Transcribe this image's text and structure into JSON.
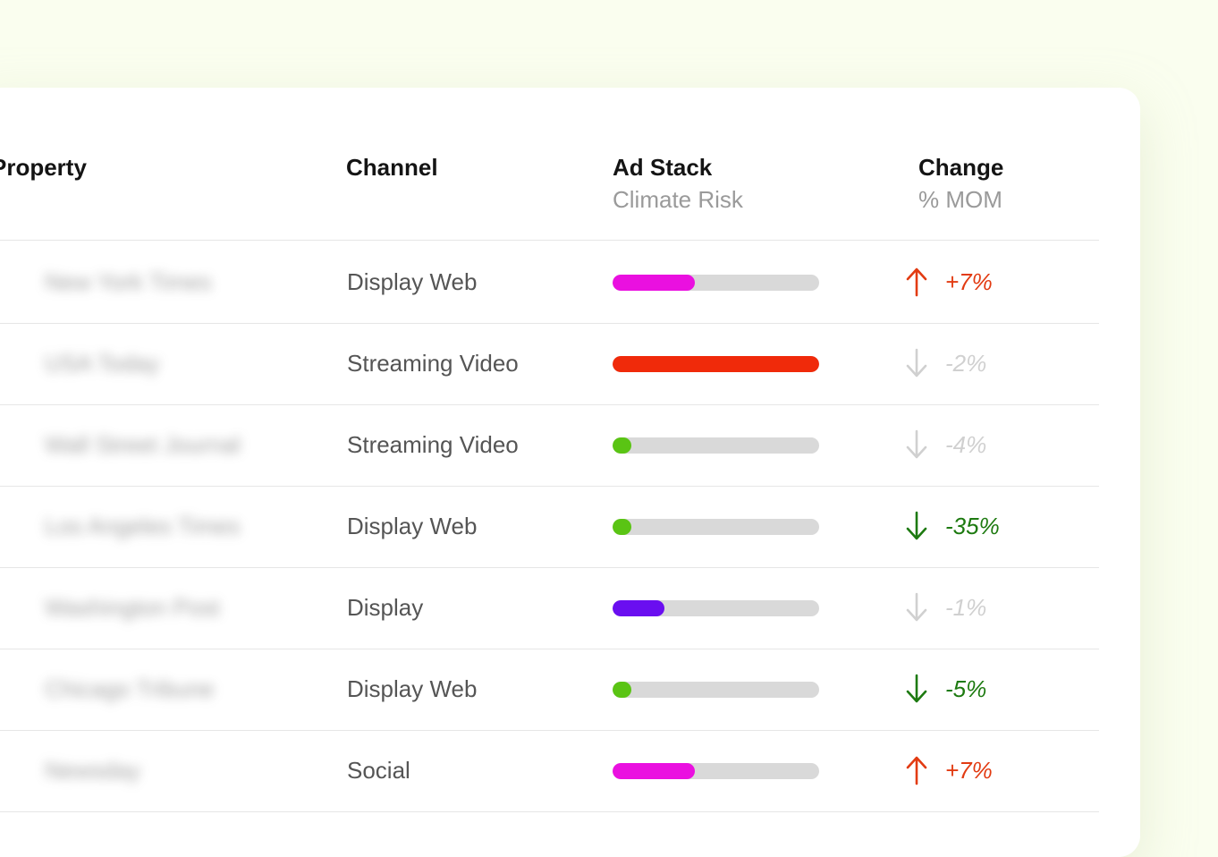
{
  "table": {
    "columns": {
      "property": {
        "title": "Property"
      },
      "channel": {
        "title": "Channel"
      },
      "adstack": {
        "title": "Ad Stack",
        "subtitle": "Climate Risk"
      },
      "change": {
        "title": "Change",
        "subtitle": "% MOM"
      }
    },
    "rows": [
      {
        "property": "New York Times",
        "channel": "Display Web",
        "risk": 0.4,
        "risk_color": "#ea10e0",
        "direction": "up",
        "change": "+7%",
        "change_color": "#e23b12"
      },
      {
        "property": "USA Today",
        "channel": "Streaming Video",
        "risk": 1.0,
        "risk_color": "#f02a0a",
        "direction": "down",
        "change": "-2%",
        "change_color": "#d0d0d0"
      },
      {
        "property": "Wall Street Journal",
        "channel": "Streaming Video",
        "risk": 0.09,
        "risk_color": "#5ac414",
        "direction": "down",
        "change": "-4%",
        "change_color": "#d0d0d0"
      },
      {
        "property": "Los Angeles Times",
        "channel": "Display Web",
        "risk": 0.09,
        "risk_color": "#5ac414",
        "direction": "down",
        "change": "-35%",
        "change_color": "#1d7a10"
      },
      {
        "property": "Washington Post",
        "channel": "Display",
        "risk": 0.25,
        "risk_color": "#6a0ef0",
        "direction": "down",
        "change": "-1%",
        "change_color": "#d0d0d0"
      },
      {
        "property": "Chicago Tribune",
        "channel": "Display Web",
        "risk": 0.09,
        "risk_color": "#5ac414",
        "direction": "down",
        "change": "-5%",
        "change_color": "#1d7a10"
      },
      {
        "property": "Newsday",
        "channel": "Social",
        "risk": 0.4,
        "risk_color": "#ea10e0",
        "direction": "up",
        "change": "+7%",
        "change_color": "#e23b12"
      }
    ]
  }
}
